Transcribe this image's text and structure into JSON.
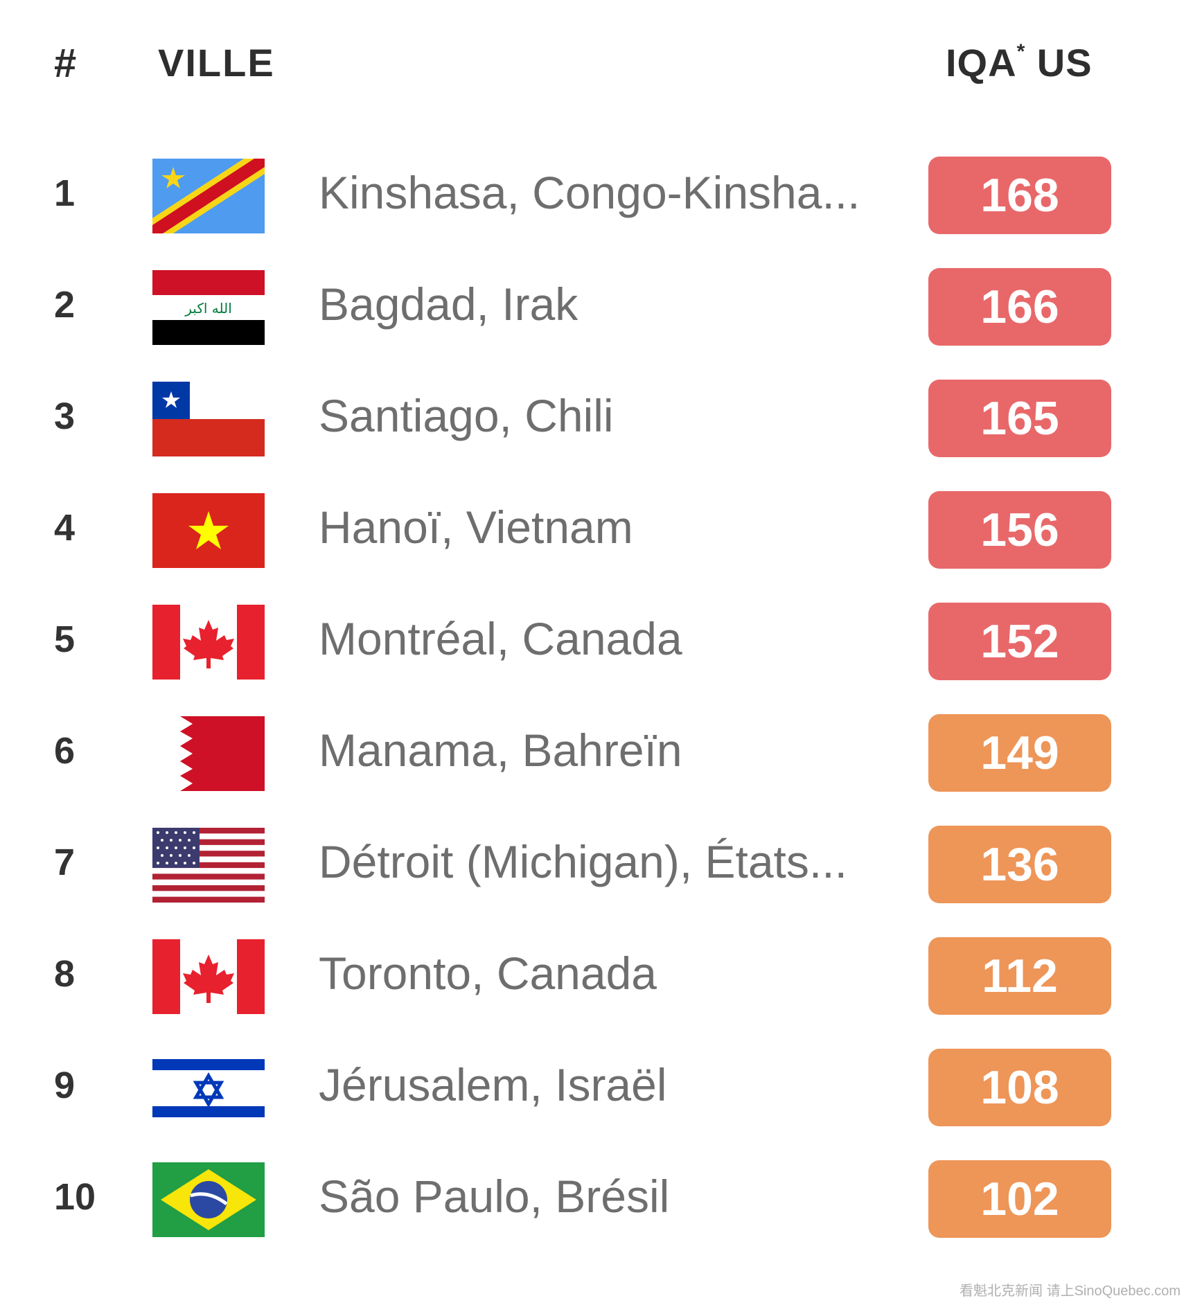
{
  "header": {
    "rank": "#",
    "city": "VILLE",
    "aqi_main": "IQA",
    "aqi_star": "*",
    "aqi_tail": " US"
  },
  "rows": [
    {
      "rank": "1",
      "city": "Kinshasa, Congo-Kinsha...",
      "aqi": "168",
      "flag": "drc-flag-icon",
      "color": "#e8686a"
    },
    {
      "rank": "2",
      "city": "Bagdad, Irak",
      "aqi": "166",
      "flag": "iraq-flag-icon",
      "color": "#e8686a"
    },
    {
      "rank": "3",
      "city": "Santiago, Chili",
      "aqi": "165",
      "flag": "chile-flag-icon",
      "color": "#e8686a"
    },
    {
      "rank": "4",
      "city": "Hanoï, Vietnam",
      "aqi": "156",
      "flag": "vietnam-flag-icon",
      "color": "#e8686a"
    },
    {
      "rank": "5",
      "city": "Montréal, Canada",
      "aqi": "152",
      "flag": "canada-flag-icon",
      "color": "#e8686a"
    },
    {
      "rank": "6",
      "city": "Manama, Bahreïn",
      "aqi": "149",
      "flag": "bahrain-flag-icon",
      "color": "#ee9558"
    },
    {
      "rank": "7",
      "city": "Détroit (Michigan), États...",
      "aqi": "136",
      "flag": "usa-flag-icon",
      "color": "#ee9558"
    },
    {
      "rank": "8",
      "city": "Toronto, Canada",
      "aqi": "112",
      "flag": "canada-flag-icon",
      "color": "#ee9558"
    },
    {
      "rank": "9",
      "city": "Jérusalem, Israël",
      "aqi": "108",
      "flag": "israel-flag-icon",
      "color": "#ee9558"
    },
    {
      "rank": "10",
      "city": "São Paulo, Brésil",
      "aqi": "102",
      "flag": "brazil-flag-icon",
      "color": "#ee9558"
    }
  ],
  "footer": "看魁北克新闻 请上SinoQuebec.com"
}
